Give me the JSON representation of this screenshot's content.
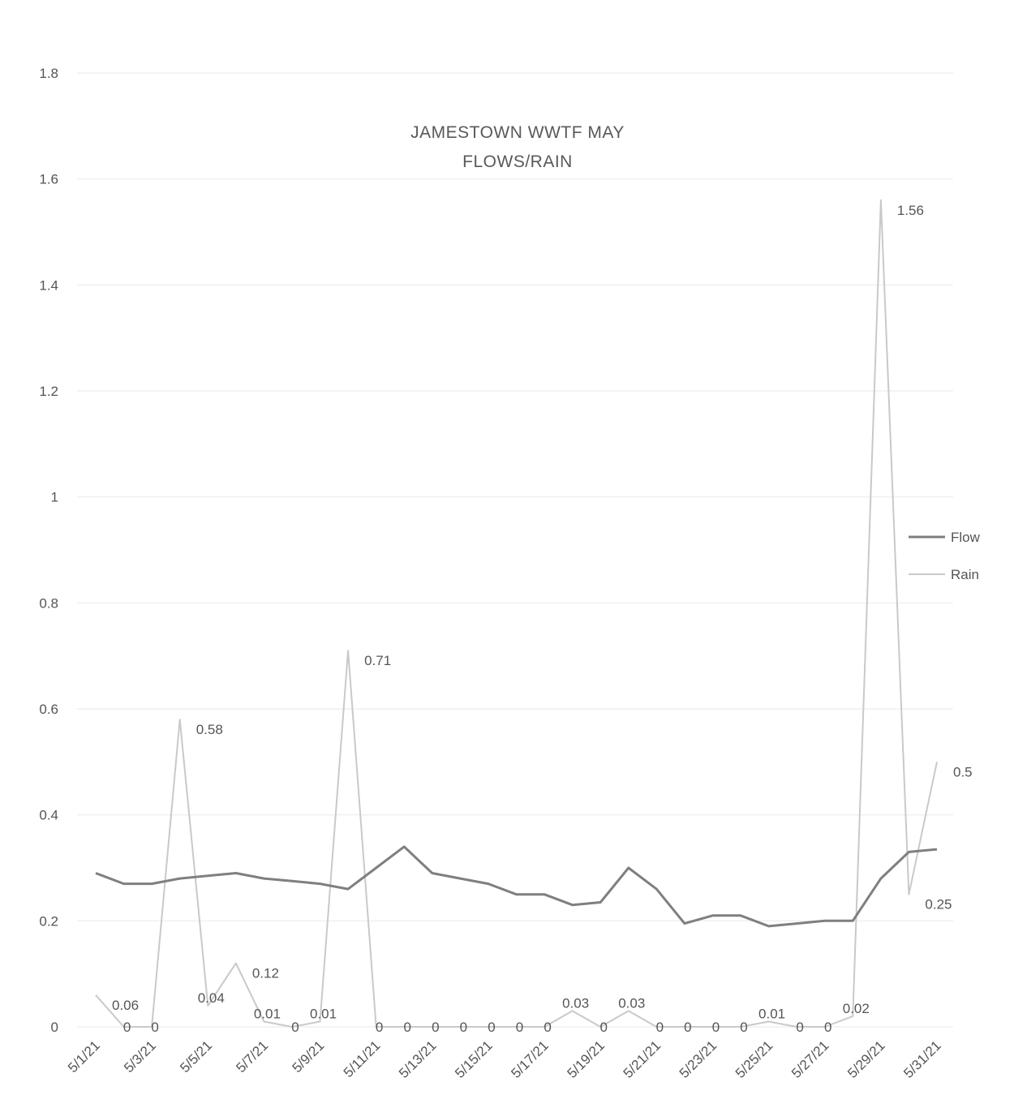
{
  "chart_data": {
    "type": "line",
    "title_lines": [
      "JAMESTOWN WWTF MAY",
      "FLOWS/RAIN"
    ],
    "x": [
      "5/1/21",
      "5/2/21",
      "5/3/21",
      "5/4/21",
      "5/5/21",
      "5/6/21",
      "5/7/21",
      "5/8/21",
      "5/9/21",
      "5/10/21",
      "5/11/21",
      "5/12/21",
      "5/13/21",
      "5/14/21",
      "5/15/21",
      "5/16/21",
      "5/17/21",
      "5/18/21",
      "5/19/21",
      "5/20/21",
      "5/21/21",
      "5/22/21",
      "5/23/21",
      "5/24/21",
      "5/25/21",
      "5/26/21",
      "5/27/21",
      "5/28/21",
      "5/29/21",
      "5/30/21",
      "5/31/21"
    ],
    "x_tick_labels": [
      "5/1/21",
      "5/3/21",
      "5/5/21",
      "5/7/21",
      "5/9/21",
      "5/11/21",
      "5/13/21",
      "5/15/21",
      "5/17/21",
      "5/19/21",
      "5/21/21",
      "5/23/21",
      "5/25/21",
      "5/27/21",
      "5/29/21",
      "5/31/21"
    ],
    "y_tick_labels": [
      "0",
      "0.2",
      "0.4",
      "0.6",
      "0.8",
      "1",
      "1.2",
      "1.4",
      "1.6",
      "1.8"
    ],
    "ylim": [
      0,
      1.8
    ],
    "grid": true,
    "legend_position": "right",
    "series": [
      {
        "name": "Flow",
        "color": "#7f7f7f",
        "values": [
          0.29,
          0.27,
          0.27,
          0.28,
          0.285,
          0.29,
          0.28,
          0.275,
          0.27,
          0.26,
          0.3,
          0.34,
          0.29,
          0.28,
          0.27,
          0.25,
          0.25,
          0.23,
          0.235,
          0.3,
          0.26,
          0.195,
          0.21,
          0.21,
          0.19,
          0.195,
          0.2,
          0.2,
          0.28,
          0.33,
          0.335
        ]
      },
      {
        "name": "Rain",
        "color": "#c9c9c9",
        "values": [
          0.06,
          0,
          0,
          0.58,
          0.04,
          0.12,
          0.01,
          0,
          0.01,
          0.71,
          0,
          0,
          0,
          0,
          0,
          0,
          0,
          0.03,
          0,
          0.03,
          0,
          0,
          0,
          0,
          0.01,
          0,
          0,
          0.02,
          1.56,
          0.25,
          0.5
        ],
        "data_labels": [
          "0.06",
          "0",
          "0",
          "0.58",
          "0.04",
          "0.12",
          "0.01",
          "0",
          "0.01",
          "0.71",
          "0",
          "0",
          "0",
          "0",
          "0",
          "0",
          "0",
          "0.03",
          "0",
          "0.03",
          "0",
          "0",
          "0",
          "0",
          "0.01",
          "0",
          "0",
          "0.02",
          "1.56",
          "0.25",
          "0.5"
        ]
      }
    ]
  }
}
